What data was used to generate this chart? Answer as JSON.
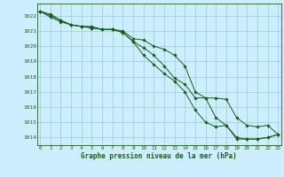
{
  "x": [
    0,
    1,
    2,
    3,
    4,
    5,
    6,
    7,
    8,
    9,
    10,
    11,
    12,
    13,
    14,
    15,
    16,
    17,
    18,
    19,
    20,
    21,
    22,
    23
  ],
  "line1": [
    1022.3,
    1022.1,
    1021.7,
    1021.4,
    1021.3,
    1021.2,
    1021.1,
    1021.1,
    1020.9,
    1020.3,
    1019.9,
    1019.4,
    1018.7,
    1017.9,
    1017.5,
    1016.6,
    1016.6,
    1015.3,
    1014.8,
    1013.9,
    1013.9,
    1013.9,
    1014.0,
    1014.2
  ],
  "line2": [
    1022.3,
    1022.0,
    1021.7,
    1021.4,
    1021.3,
    1021.3,
    1021.1,
    1021.1,
    1021.0,
    1020.5,
    1020.4,
    1020.0,
    1019.8,
    1019.4,
    1018.7,
    1017.0,
    1016.6,
    1016.6,
    1016.5,
    1015.3,
    1014.8,
    1014.7,
    1014.8,
    1014.2
  ],
  "line3": [
    1022.3,
    1021.9,
    1021.6,
    1021.4,
    1021.3,
    1021.2,
    1021.1,
    1021.1,
    1020.9,
    1020.3,
    1019.4,
    1018.8,
    1018.2,
    1017.7,
    1017.0,
    1015.8,
    1015.0,
    1014.7,
    1014.8,
    1014.0,
    1013.9,
    1013.9,
    1014.0,
    1014.2
  ],
  "bg_color": "#cceeff",
  "grid_color": "#99cccc",
  "line_color": "#1a5c1a",
  "ylim_min": 1013.5,
  "ylim_max": 1022.8,
  "xlabel": "Graphe pression niveau de la mer (hPa)",
  "xticks": [
    0,
    1,
    2,
    3,
    4,
    5,
    6,
    7,
    8,
    9,
    10,
    11,
    12,
    13,
    14,
    15,
    16,
    17,
    18,
    19,
    20,
    21,
    22,
    23
  ],
  "yticks": [
    1014,
    1015,
    1016,
    1017,
    1018,
    1019,
    1020,
    1021,
    1022
  ]
}
